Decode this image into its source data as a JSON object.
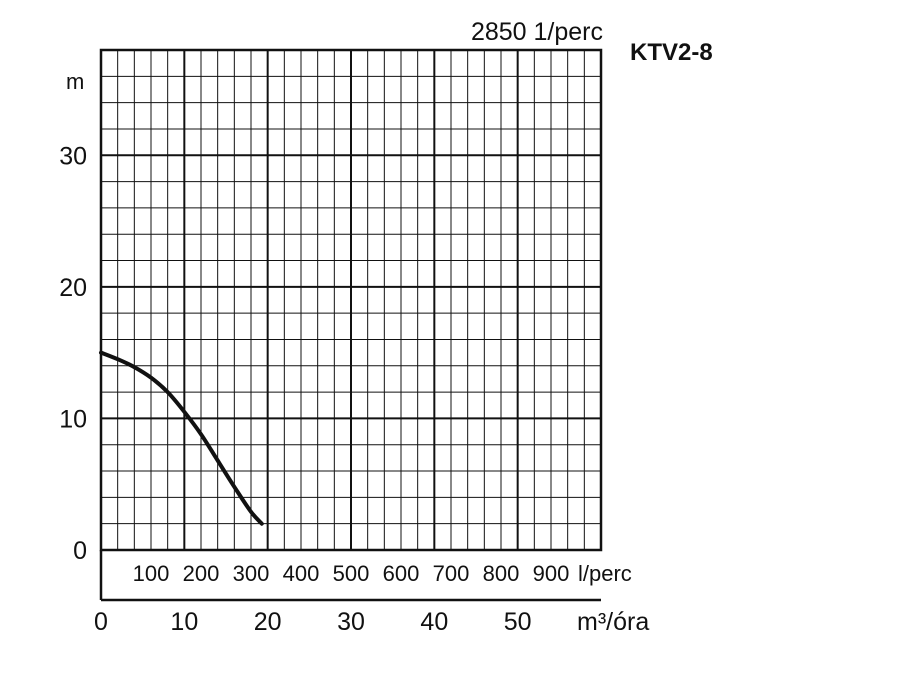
{
  "chart_data": {
    "type": "line",
    "title": "KTV2-8",
    "subtitle": "2850 1/perc",
    "ylabel": "m",
    "xlabel": "m³/óra",
    "secondary_xlabel": "l/perc",
    "ylim": [
      0,
      38
    ],
    "xlim": [
      0,
      60
    ],
    "secondary_xlim": [
      0,
      1000
    ],
    "y_ticks": [
      "0",
      "10",
      "20",
      "30"
    ],
    "x_ticks": [
      "0",
      "10",
      "20",
      "30",
      "40",
      "50"
    ],
    "secondary_x_ticks": [
      "100",
      "200",
      "300",
      "400",
      "500",
      "600",
      "700",
      "800",
      "900"
    ],
    "grid": true,
    "series": [
      {
        "x": [
          0,
          2,
          4,
          6,
          8,
          10,
          12,
          14,
          16,
          18,
          19.3
        ],
        "y": [
          15,
          14.5,
          13.9,
          13.1,
          12,
          10.5,
          8.8,
          6.8,
          4.8,
          2.9,
          2
        ]
      }
    ],
    "line_color": "#111111",
    "grid_color": "#111111"
  }
}
